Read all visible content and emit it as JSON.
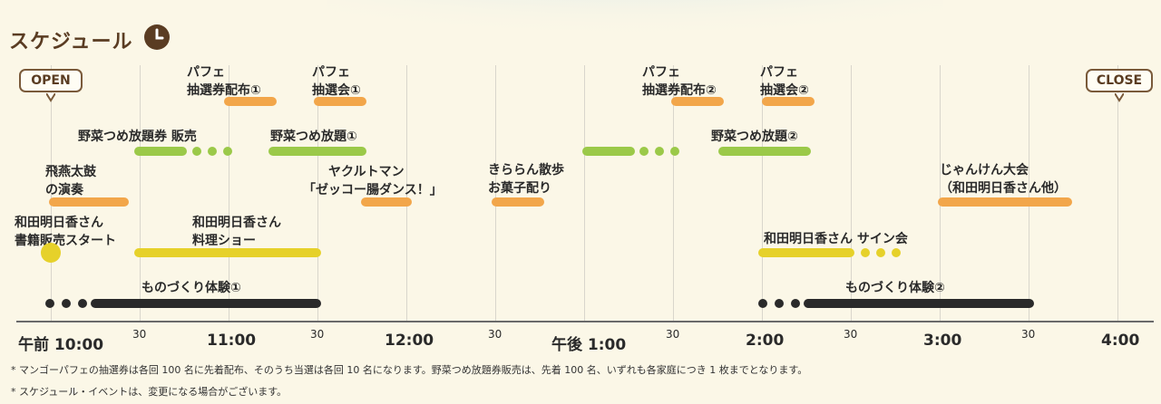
{
  "header": {
    "title": "スケジュール",
    "clock_icon": "clock-icon"
  },
  "callouts": {
    "open": "OPEN",
    "close": "CLOSE"
  },
  "ticks": {
    "t1000": "午前 10:00",
    "t1100": "11:00",
    "t1200": "12:00",
    "t1300": "午後 1:00",
    "t1400": "2:00",
    "t1500": "3:00",
    "t1600": "4:00",
    "half": "30"
  },
  "events": {
    "parfait_dist1": [
      "パフェ",
      "抽選券配布①"
    ],
    "parfait_draw1": [
      "パフェ",
      "抽選会①"
    ],
    "parfait_dist2": [
      "パフェ",
      "抽選券配布②"
    ],
    "parfait_draw2": [
      "パフェ",
      "抽選会②"
    ],
    "veg_ticket": "野菜つめ放題券 販売",
    "veg1": "野菜つめ放題①",
    "veg2": "野菜つめ放題②",
    "taiko": [
      "飛燕太鼓",
      "の演奏"
    ],
    "yakult": [
      "ヤクルトマン",
      "「ゼッコー腸ダンス！」"
    ],
    "kirara": [
      "きららん散歩",
      "お菓子配り"
    ],
    "janken": [
      "じゃんけん大会",
      "（和田明日香さん他）"
    ],
    "book": [
      "和田明日香さん",
      "書籍販売スタート"
    ],
    "cooking": [
      "和田明日香さん",
      "料理ショー"
    ],
    "signing": "和田明日香さん サイン会",
    "craft1": "ものづくり体験①",
    "craft2": "ものづくり体験②"
  },
  "notes": [
    "* マンゴーパフェの抽選券は各回 100 名に先着配布、そのうち当選は各回 10 名になります。野菜つめ放題券販売は、先着 100 名、いずれも各家庭につき 1 枚までとなります。",
    "* スケジュール・イベントは、変更になる場合がございます。"
  ],
  "colors": {
    "orange": "#f2a64a",
    "green": "#9bc949",
    "yellow": "#e6d12a",
    "black": "#2a2a2a",
    "title_brown": "#5a3c22"
  }
}
